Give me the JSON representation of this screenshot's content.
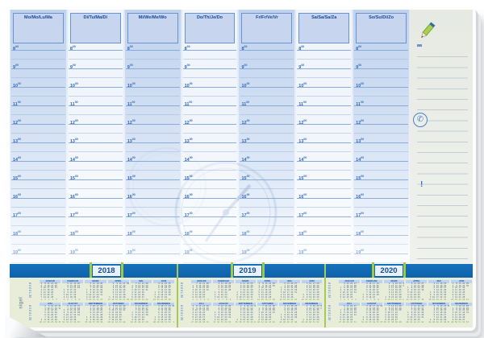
{
  "product": {
    "brand": "sigel"
  },
  "planner": {
    "days": [
      "Mo/Mo/Lu/Ma",
      "Di/Tu/Ma/Di",
      "Mi/We/Me/Wo",
      "Do/Th/Je/Do",
      "Fr/Fr/Ve/Vr",
      "Sa/Sa/Sa/Za",
      "So/Su/Di/Zo"
    ],
    "hours": [
      "8",
      "9",
      "10",
      "11",
      "12",
      "13",
      "14",
      "15",
      "16",
      "17",
      "18",
      "19"
    ],
    "hour_suffix": "00"
  },
  "notes": {
    "pencil_icon": "pencil-icon",
    "phone_char": "✆",
    "alert_char": "!"
  },
  "years_bar": {
    "tabs": [
      "2018",
      "2019",
      "2020"
    ]
  },
  "calendar": {
    "weekday_labels": [
      "Mo",
      "Di",
      "Mi",
      "Do",
      "Fr",
      "Sa",
      "So"
    ],
    "month_labels": [
      "JANUAR",
      "FEBRUAR",
      "MÄRZ",
      "APRIL",
      "MAI",
      "JUNI",
      "JULI",
      "AUGUST",
      "SEPTEMBER",
      "OKTOBER",
      "NOVEMBER",
      "DEZEMBER"
    ],
    "years": [
      2018,
      2019,
      2020
    ]
  },
  "colors": {
    "bar_blue": "#1068b2",
    "accent_green": "#9ecb44",
    "planner_blue": "#c7d6ee",
    "header_text_blue": "#15479c",
    "mini_cal_bg": "#e8edda"
  }
}
